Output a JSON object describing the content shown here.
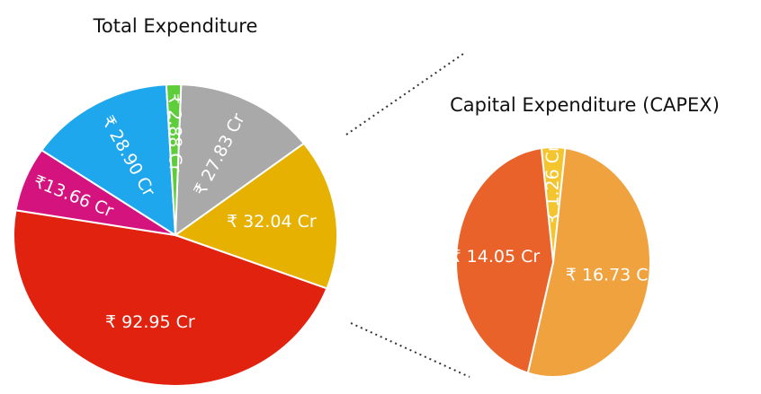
{
  "chart_data": [
    {
      "type": "pie",
      "title": "Total Expenditure",
      "values": [
        27.83,
        32.04,
        92.95,
        13.66,
        28.9,
        2.88
      ],
      "value_labels": [
        "₹ 27.83 Cr",
        "₹ 32.04 Cr",
        "₹ 92.95 Cr",
        "₹13.66 Cr",
        "₹ 28.90 Cr",
        "₹ 2.88 Cr"
      ],
      "colors": [
        "#a9a9a9",
        "#e6b100",
        "#e0220f",
        "#d4137f",
        "#1ea7ec",
        "#5dce39"
      ]
    },
    {
      "type": "pie",
      "title": "Capital Expenditure (CAPEX)",
      "values": [
        1.26,
        16.73,
        14.05
      ],
      "value_labels": [
        "₹ 1.26 Cr",
        "₹ 16.73 Cr",
        "₹ 14.05 Cr"
      ],
      "colors": [
        "#f4c52f",
        "#f0a23e",
        "#e8622a"
      ]
    }
  ]
}
